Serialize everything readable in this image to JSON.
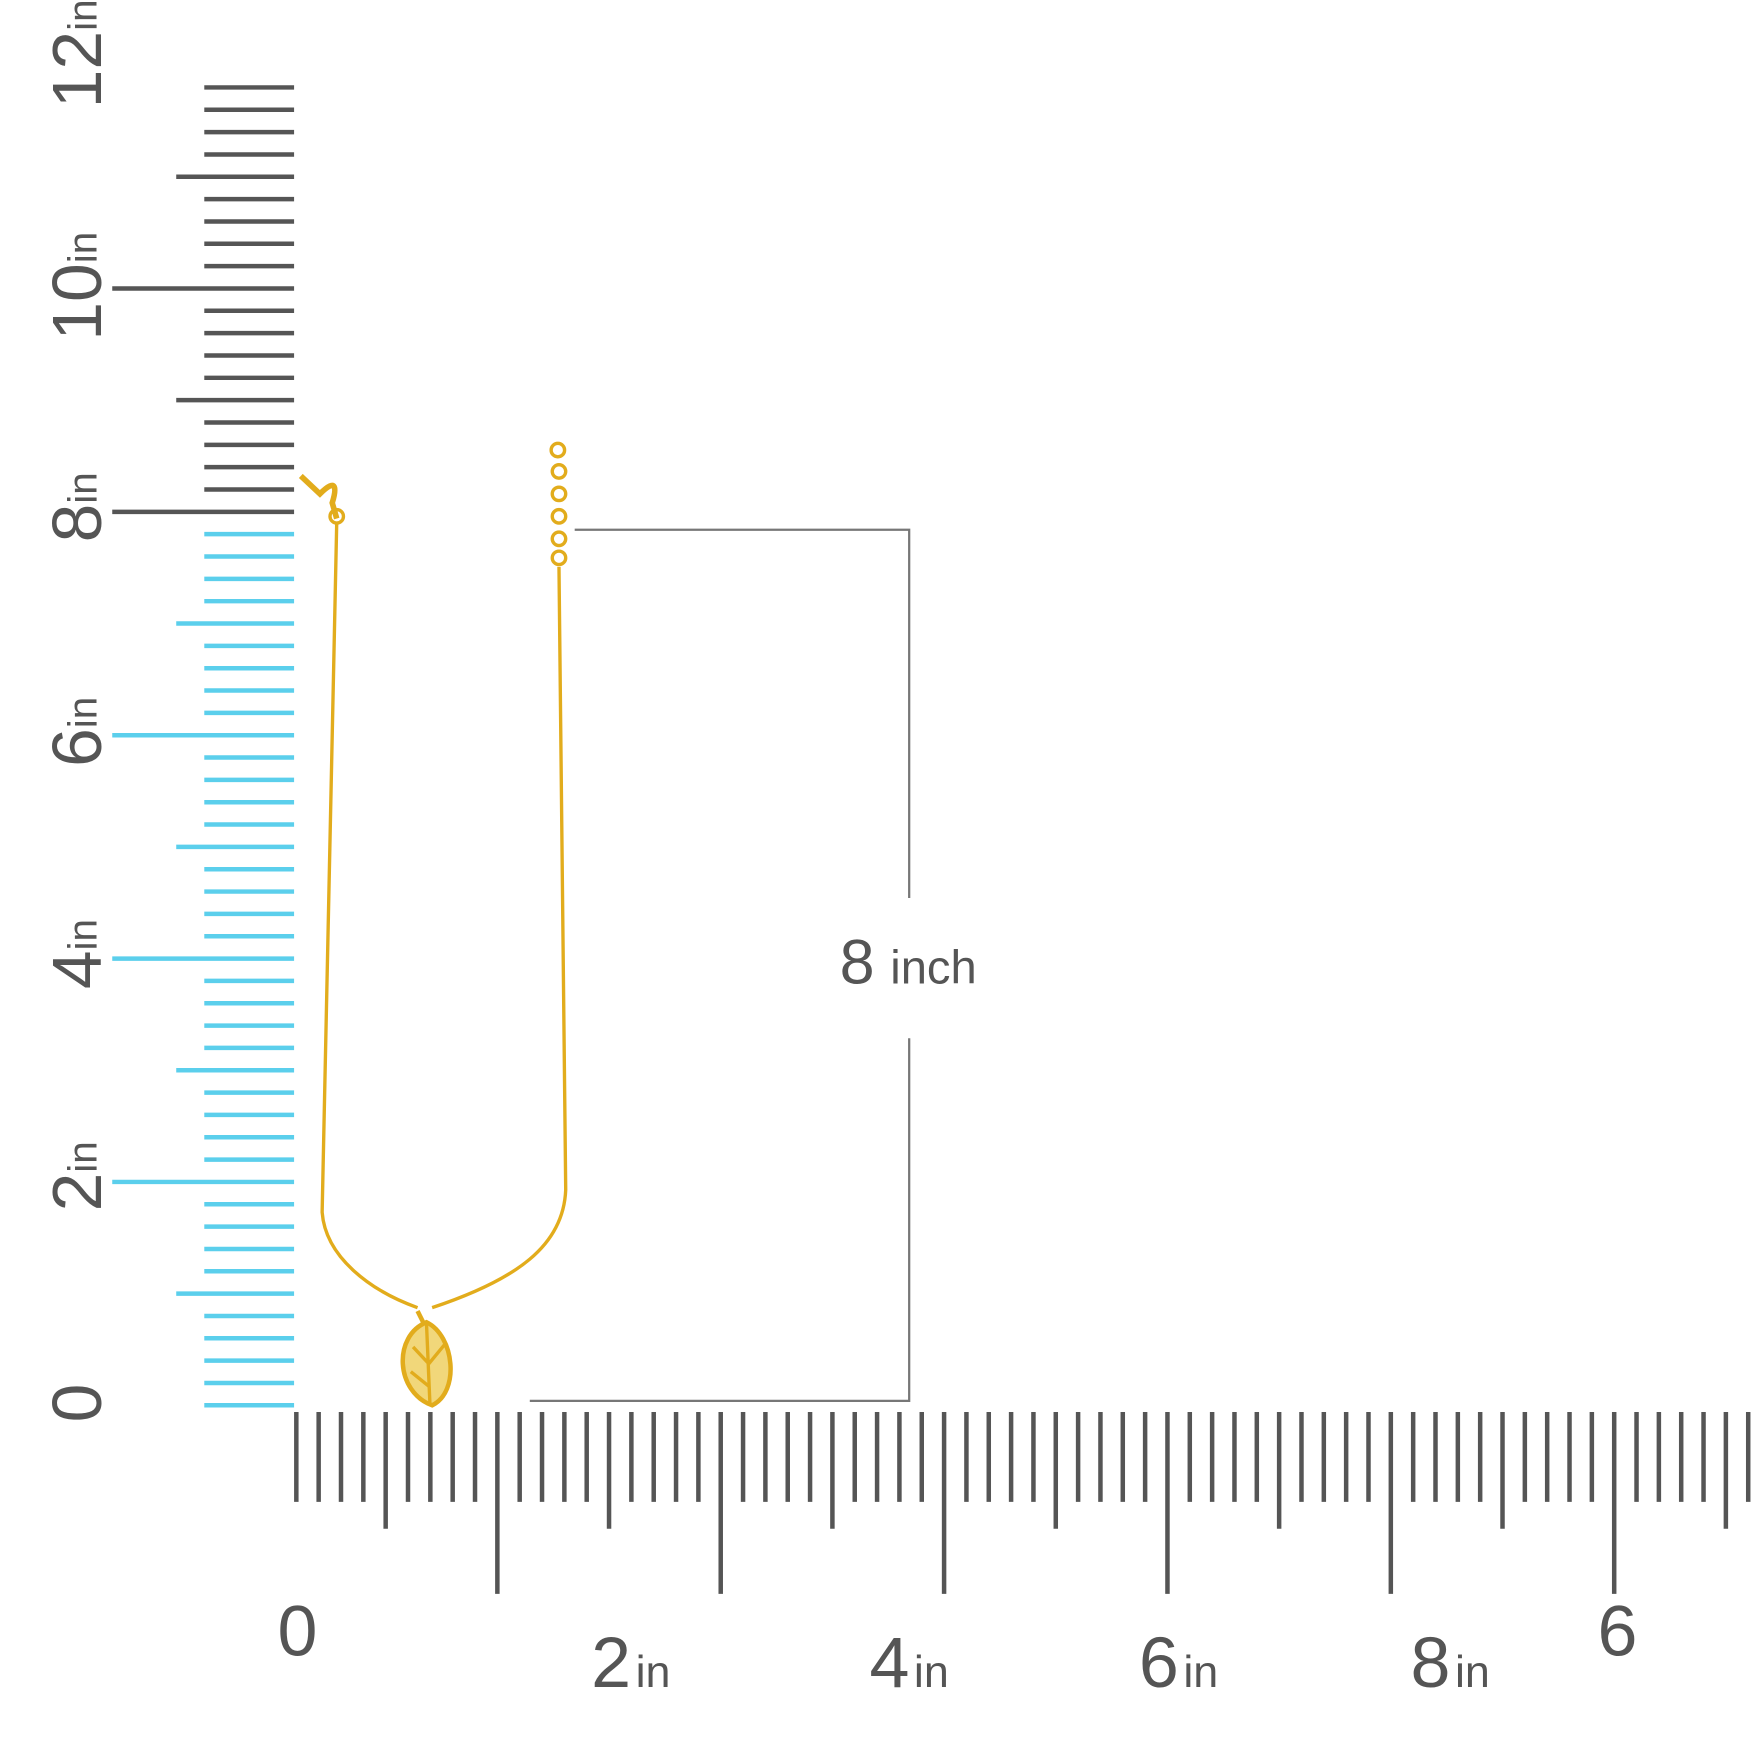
{
  "vertical_ruler": {
    "labels": [
      {
        "number": "12",
        "unit": "in"
      },
      {
        "number": "10",
        "unit": "in"
      },
      {
        "number": "8",
        "unit": "in"
      },
      {
        "number": "6",
        "unit": "in"
      },
      {
        "number": "4",
        "unit": "in"
      },
      {
        "number": "2",
        "unit": "in"
      },
      {
        "number": "0"
      }
    ]
  },
  "horizontal_ruler": {
    "labels": [
      {
        "number": "0"
      },
      {
        "number": "2",
        "unit": "in"
      },
      {
        "number": "4",
        "unit": "in"
      },
      {
        "number": "6",
        "unit": "in"
      },
      {
        "number": "8",
        "unit": "in"
      },
      {
        "number": "6"
      }
    ]
  },
  "measurement": {
    "number": "8",
    "unit": "inch"
  }
}
